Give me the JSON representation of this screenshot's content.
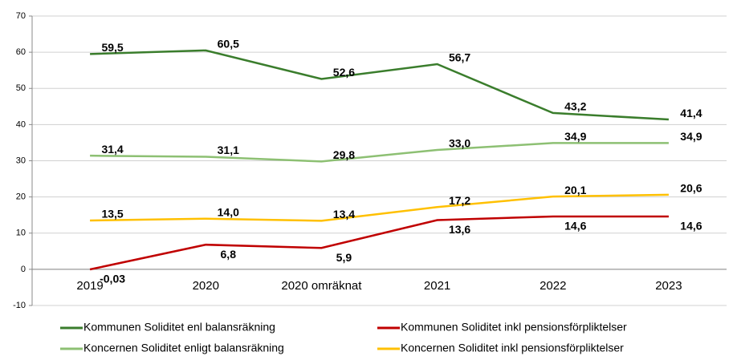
{
  "chart_data": {
    "type": "line",
    "categories": [
      "2019",
      "2020",
      "2020 omräknat",
      "2021",
      "2022",
      "2023"
    ],
    "series": [
      {
        "name": "Kommunen Soliditet enl balansräkning",
        "color": "#3a7d2c",
        "values": [
          59.5,
          60.5,
          52.6,
          56.7,
          43.2,
          41.4
        ],
        "value_labels": [
          "59,5",
          "60,5",
          "52,6",
          "56,7",
          "43,2",
          "41,4"
        ]
      },
      {
        "name": "Kommunen Soliditet inkl pensionsförpliktelser",
        "color": "#c00000",
        "values": [
          -0.03,
          6.8,
          5.9,
          13.6,
          14.6,
          14.6
        ],
        "value_labels": [
          "-0,03",
          "6,8",
          "5,9",
          "13,6",
          "14,6",
          "14,6"
        ]
      },
      {
        "name": "Koncernen Soliditet enligt balansräkning",
        "color": "#8dc073",
        "values": [
          31.4,
          31.1,
          29.8,
          33.0,
          34.9,
          34.9
        ],
        "value_labels": [
          "31,4",
          "31,1",
          "29,8",
          "33,0",
          "34,9",
          "34,9"
        ]
      },
      {
        "name": "Koncernen Soliditet inkl pensionsförpliktelser",
        "color": "#ffc000",
        "values": [
          13.5,
          14.0,
          13.4,
          17.2,
          20.1,
          20.6
        ],
        "value_labels": [
          "13,5",
          "14,0",
          "13,4",
          "17,2",
          "20,1",
          "20,6"
        ]
      }
    ],
    "ylim": [
      -10,
      70
    ],
    "yticks": [
      -10,
      0,
      10,
      20,
      30,
      40,
      50,
      60,
      70
    ],
    "grid": true,
    "legend": "bottom"
  }
}
